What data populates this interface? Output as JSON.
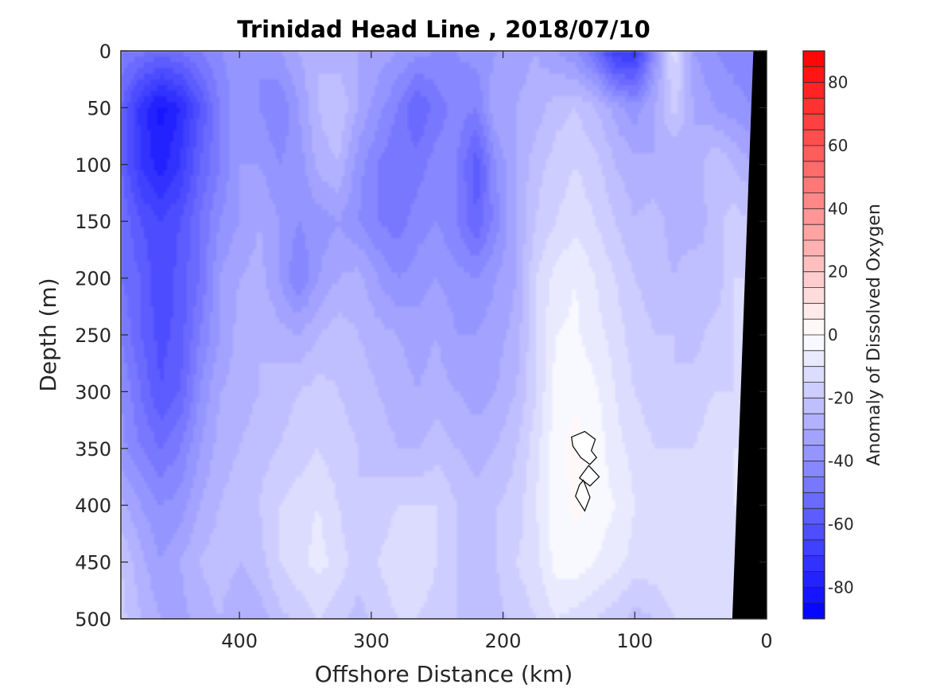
{
  "chart_data": {
    "type": "heatmap",
    "title": "Trinidad Head Line , 2018/07/10",
    "xlabel": "Offshore Distance (km)",
    "ylabel": "Depth (m)",
    "colorbar_label": "Anomaly of Dissolved Oxygen",
    "xlim": [
      490,
      0
    ],
    "x_reversed": true,
    "ylim": [
      0,
      500
    ],
    "y_reversed": true,
    "x_ticks": [
      400,
      300,
      200,
      100,
      0
    ],
    "y_ticks": [
      0,
      50,
      100,
      150,
      200,
      250,
      300,
      350,
      400,
      450,
      500
    ],
    "colorbar_range": [
      -90,
      90
    ],
    "colorbar_ticks": [
      -80,
      -60,
      -40,
      -20,
      0,
      20,
      40,
      60,
      80
    ],
    "colorbar_step": 5,
    "colormap": {
      "negative": "#0000ff",
      "zero": "#ffffff",
      "positive": "#ff0000"
    },
    "mask_color": "#000000",
    "grid": false,
    "x": [
      490,
      475,
      460,
      445,
      430,
      415,
      400,
      385,
      370,
      355,
      340,
      325,
      310,
      295,
      280,
      265,
      250,
      235,
      220,
      205,
      190,
      175,
      160,
      145,
      130,
      115,
      100,
      85,
      70,
      55,
      40,
      25,
      10
    ],
    "y": [
      0,
      50,
      100,
      150,
      200,
      250,
      300,
      350,
      400,
      450,
      500
    ],
    "z": [
      [
        -45,
        -48,
        -52,
        -50,
        -45,
        -40,
        -38,
        -40,
        -35,
        -30,
        -25,
        -28,
        -30,
        -32,
        -35,
        -38,
        -40,
        -40,
        -38,
        -35,
        -32,
        -30,
        -35,
        -40,
        -50,
        -70,
        -72,
        -40,
        -12,
        -35,
        -40,
        -42,
        -45
      ],
      [
        -55,
        -72,
        -82,
        -75,
        -60,
        -45,
        -35,
        -40,
        -45,
        -35,
        -25,
        -20,
        -30,
        -38,
        -45,
        -55,
        -48,
        -42,
        -45,
        -30,
        -30,
        -28,
        -22,
        -20,
        -25,
        -32,
        -38,
        -30,
        -18,
        -30,
        -35,
        -38,
        -40
      ],
      [
        -55,
        -70,
        -78,
        -70,
        -55,
        -45,
        -35,
        -35,
        -40,
        -38,
        -28,
        -25,
        -38,
        -45,
        -50,
        -48,
        -42,
        -45,
        -58,
        -40,
        -30,
        -22,
        -18,
        -15,
        -18,
        -25,
        -28,
        -30,
        -30,
        -30,
        -20,
        -25,
        -30
      ],
      [
        -50,
        -60,
        -65,
        -60,
        -50,
        -40,
        -35,
        -30,
        -35,
        -40,
        -38,
        -35,
        -40,
        -45,
        -48,
        -42,
        -40,
        -45,
        -55,
        -42,
        -30,
        -20,
        -15,
        -12,
        -15,
        -20,
        -25,
        -22,
        -28,
        -30,
        -22,
        -18,
        -20
      ],
      [
        -50,
        -55,
        -65,
        -58,
        -50,
        -35,
        -30,
        -28,
        -35,
        -45,
        -35,
        -30,
        -28,
        -35,
        -40,
        -38,
        -35,
        -38,
        -40,
        -35,
        -30,
        -15,
        -8,
        -5,
        -10,
        -15,
        -20,
        -22,
        -25,
        -20,
        -25,
        -15,
        -15
      ],
      [
        -45,
        -55,
        -62,
        -58,
        -45,
        -35,
        -28,
        -25,
        -28,
        -30,
        -25,
        -22,
        -25,
        -28,
        -30,
        -32,
        -30,
        -35,
        -35,
        -32,
        -28,
        -15,
        -5,
        -4,
        -8,
        -12,
        -18,
        -20,
        -20,
        -22,
        -18,
        -15,
        -12
      ],
      [
        -40,
        -50,
        -60,
        -55,
        -40,
        -30,
        -28,
        -25,
        -22,
        -20,
        -18,
        -20,
        -22,
        -25,
        -28,
        -30,
        -28,
        -30,
        -32,
        -30,
        -25,
        -15,
        -3,
        -1,
        -4,
        -10,
        -15,
        -18,
        -20,
        -18,
        -15,
        -15,
        -12
      ],
      [
        -38,
        -45,
        -50,
        -45,
        -35,
        -28,
        -25,
        -22,
        -20,
        -18,
        -15,
        -18,
        -20,
        -22,
        -25,
        -25,
        -22,
        -25,
        -28,
        -25,
        -20,
        -12,
        -2,
        2,
        -2,
        -8,
        -12,
        -15,
        -15,
        -15,
        -12,
        -10,
        -10
      ],
      [
        -28,
        -35,
        -40,
        -38,
        -30,
        -25,
        -22,
        -20,
        -15,
        -12,
        -10,
        -15,
        -20,
        -18,
        -15,
        -15,
        -15,
        -20,
        -22,
        -20,
        -18,
        -10,
        -2,
        1,
        -2,
        -5,
        -10,
        -12,
        -10,
        -12,
        -10,
        -10,
        -10
      ],
      [
        -20,
        -28,
        -35,
        -30,
        -25,
        -22,
        -25,
        -22,
        -15,
        -12,
        -8,
        -12,
        -18,
        -15,
        -12,
        -10,
        -15,
        -20,
        -22,
        -20,
        -15,
        -12,
        -3,
        -2,
        -5,
        -8,
        -12,
        -12,
        -10,
        -12,
        -12,
        -12,
        -12
      ],
      [
        -18,
        -25,
        -30,
        -32,
        -28,
        -25,
        -30,
        -28,
        -22,
        -18,
        -15,
        -18,
        -22,
        -18,
        -15,
        -15,
        -18,
        -20,
        -22,
        -22,
        -18,
        -15,
        -10,
        -12,
        -15,
        -18,
        -22,
        -20,
        -15,
        -15,
        -15,
        -15,
        -15
      ]
    ],
    "zero_contour_regions": [
      [
        [
          138,
          335
        ],
        [
          130,
          342
        ],
        [
          133,
          352
        ],
        [
          129,
          358
        ],
        [
          134,
          364
        ],
        [
          141,
          358
        ],
        [
          147,
          348
        ],
        [
          148,
          340
        ]
      ],
      [
        [
          135,
          365
        ],
        [
          127,
          375
        ],
        [
          134,
          383
        ],
        [
          142,
          376
        ]
      ],
      [
        [
          139,
          378
        ],
        [
          134,
          393
        ],
        [
          138,
          405
        ],
        [
          145,
          392
        ],
        [
          142,
          382
        ]
      ]
    ],
    "coastline": [
      [
        10,
        0
      ],
      [
        0,
        0
      ],
      [
        0,
        500
      ],
      [
        26,
        500
      ]
    ]
  }
}
